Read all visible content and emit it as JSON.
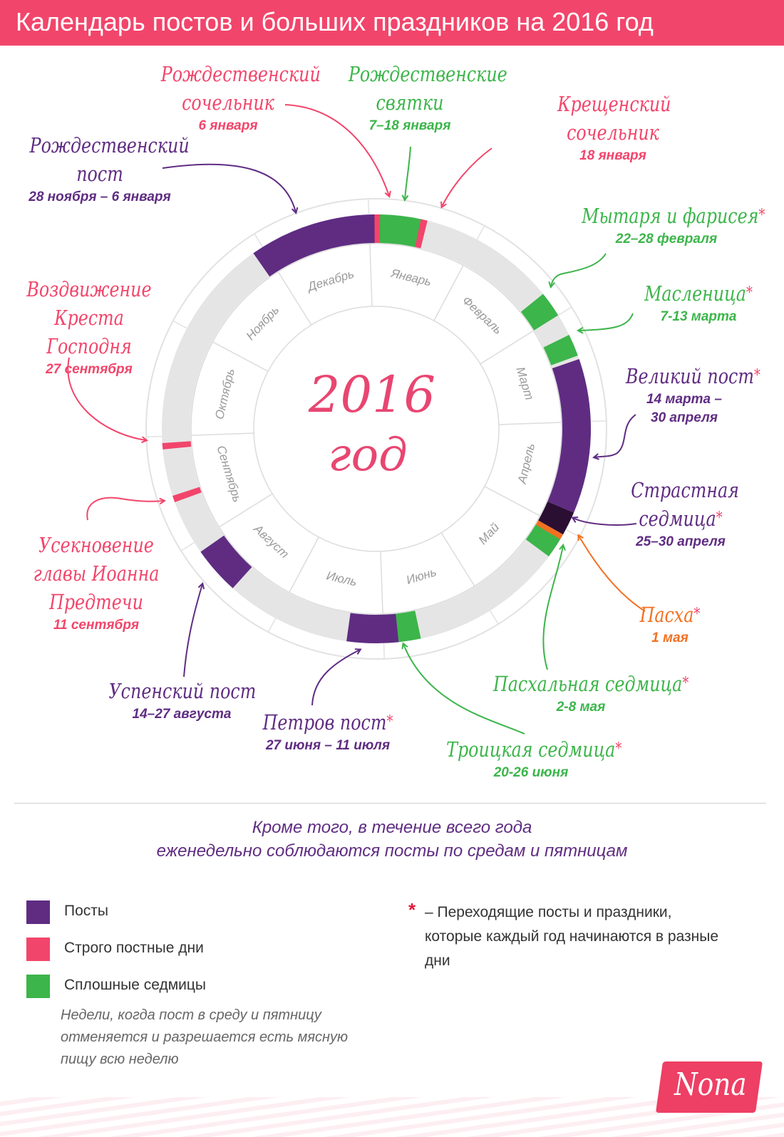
{
  "header": {
    "title": "Календарь постов и больших праздников на 2016 год"
  },
  "colors": {
    "header": "#f2456b",
    "fast": "#5f2c82",
    "strict": "#f2456b",
    "continuous": "#3cb54a",
    "passion": "#2a0f33",
    "easter": "#f37021",
    "ring_track": "#e5e5e5",
    "month_text": "#9a9a9a",
    "center_text": "#e84671"
  },
  "wheel": {
    "center_line1": "2016",
    "center_line2": "год",
    "months": [
      "Январь",
      "Февраль",
      "Март",
      "Апрель",
      "Май",
      "Июнь",
      "Июль",
      "Август",
      "Сентябрь",
      "Октябрь",
      "Ноябрь",
      "Декабрь"
    ]
  },
  "annotations": {
    "rozhd_sochelnik": {
      "title": "Рождественский сочельник",
      "date": "6 января",
      "color": "#f2456b"
    },
    "svyatki": {
      "title": "Рождественские святки",
      "date": "7–18 января",
      "color": "#3cb54a"
    },
    "kresch_sochelnik": {
      "title": "Крещенский сочельник",
      "date": "18 января",
      "color": "#f2456b"
    },
    "rozhd_post": {
      "title": "Рождественский пост",
      "date": "28 ноября – 6 января",
      "color": "#5f2c82"
    },
    "mytar": {
      "title": "Мытаря и фарисея",
      "date": "22–28 февраля",
      "color": "#3cb54a",
      "asterisk": "*"
    },
    "maslenitsa": {
      "title": "Масленица",
      "date": "7-13 марта",
      "color": "#3cb54a",
      "asterisk": "*"
    },
    "vozdvizhenie": {
      "title": "Воздвижение Креста Господня",
      "date": "27 сентября",
      "color": "#f2456b"
    },
    "velikiy": {
      "title": "Великий пост",
      "date_line1": "14 марта –",
      "date_line2": "30 апреля",
      "color": "#5f2c82",
      "asterisk": "*"
    },
    "strastnaya": {
      "title": "Страстная седмица",
      "date": "25–30 апреля",
      "color": "#5f2c82",
      "asterisk": "*"
    },
    "useknovenie": {
      "title": "Усекновение главы Иоанна Предтечи",
      "date": "11 сентября",
      "color": "#f2456b"
    },
    "pascha": {
      "title": "Пасха",
      "date": "1 мая",
      "color": "#f37021",
      "asterisk": "*"
    },
    "uspenskiy": {
      "title": "Успенский пост",
      "date": "14–27 августа",
      "color": "#5f2c82"
    },
    "paschalnaya": {
      "title": "Пасхальная седмица",
      "date": "2-8 мая",
      "color": "#3cb54a",
      "asterisk": "*"
    },
    "petrov": {
      "title": "Петров пост",
      "date": "27 июня – 11 июля",
      "color": "#5f2c82",
      "asterisk": "*"
    },
    "troitskaya": {
      "title": "Троицкая седмица",
      "date": "20-26 июня",
      "color": "#3cb54a",
      "asterisk": "*"
    }
  },
  "note": {
    "line1": "Кроме того, в течение всего года",
    "line2": "еженедельно соблюдаются посты по средам и пятницам"
  },
  "legend": {
    "items": [
      {
        "label": "Посты",
        "color": "#5f2c82"
      },
      {
        "label": "Строго постные дни",
        "color": "#f2456b"
      },
      {
        "label": "Сплошные седмицы",
        "color": "#3cb54a"
      }
    ],
    "continuous_desc": "Недели, когда пост в среду и пятницу отменяется и разрешается есть мясную пищу всю неделю",
    "asterisk": "*",
    "asterisk_note": "– Переходящие посты и праздники, которые каждый год начинаются в разные дни"
  },
  "logo": {
    "text": "Nona"
  }
}
